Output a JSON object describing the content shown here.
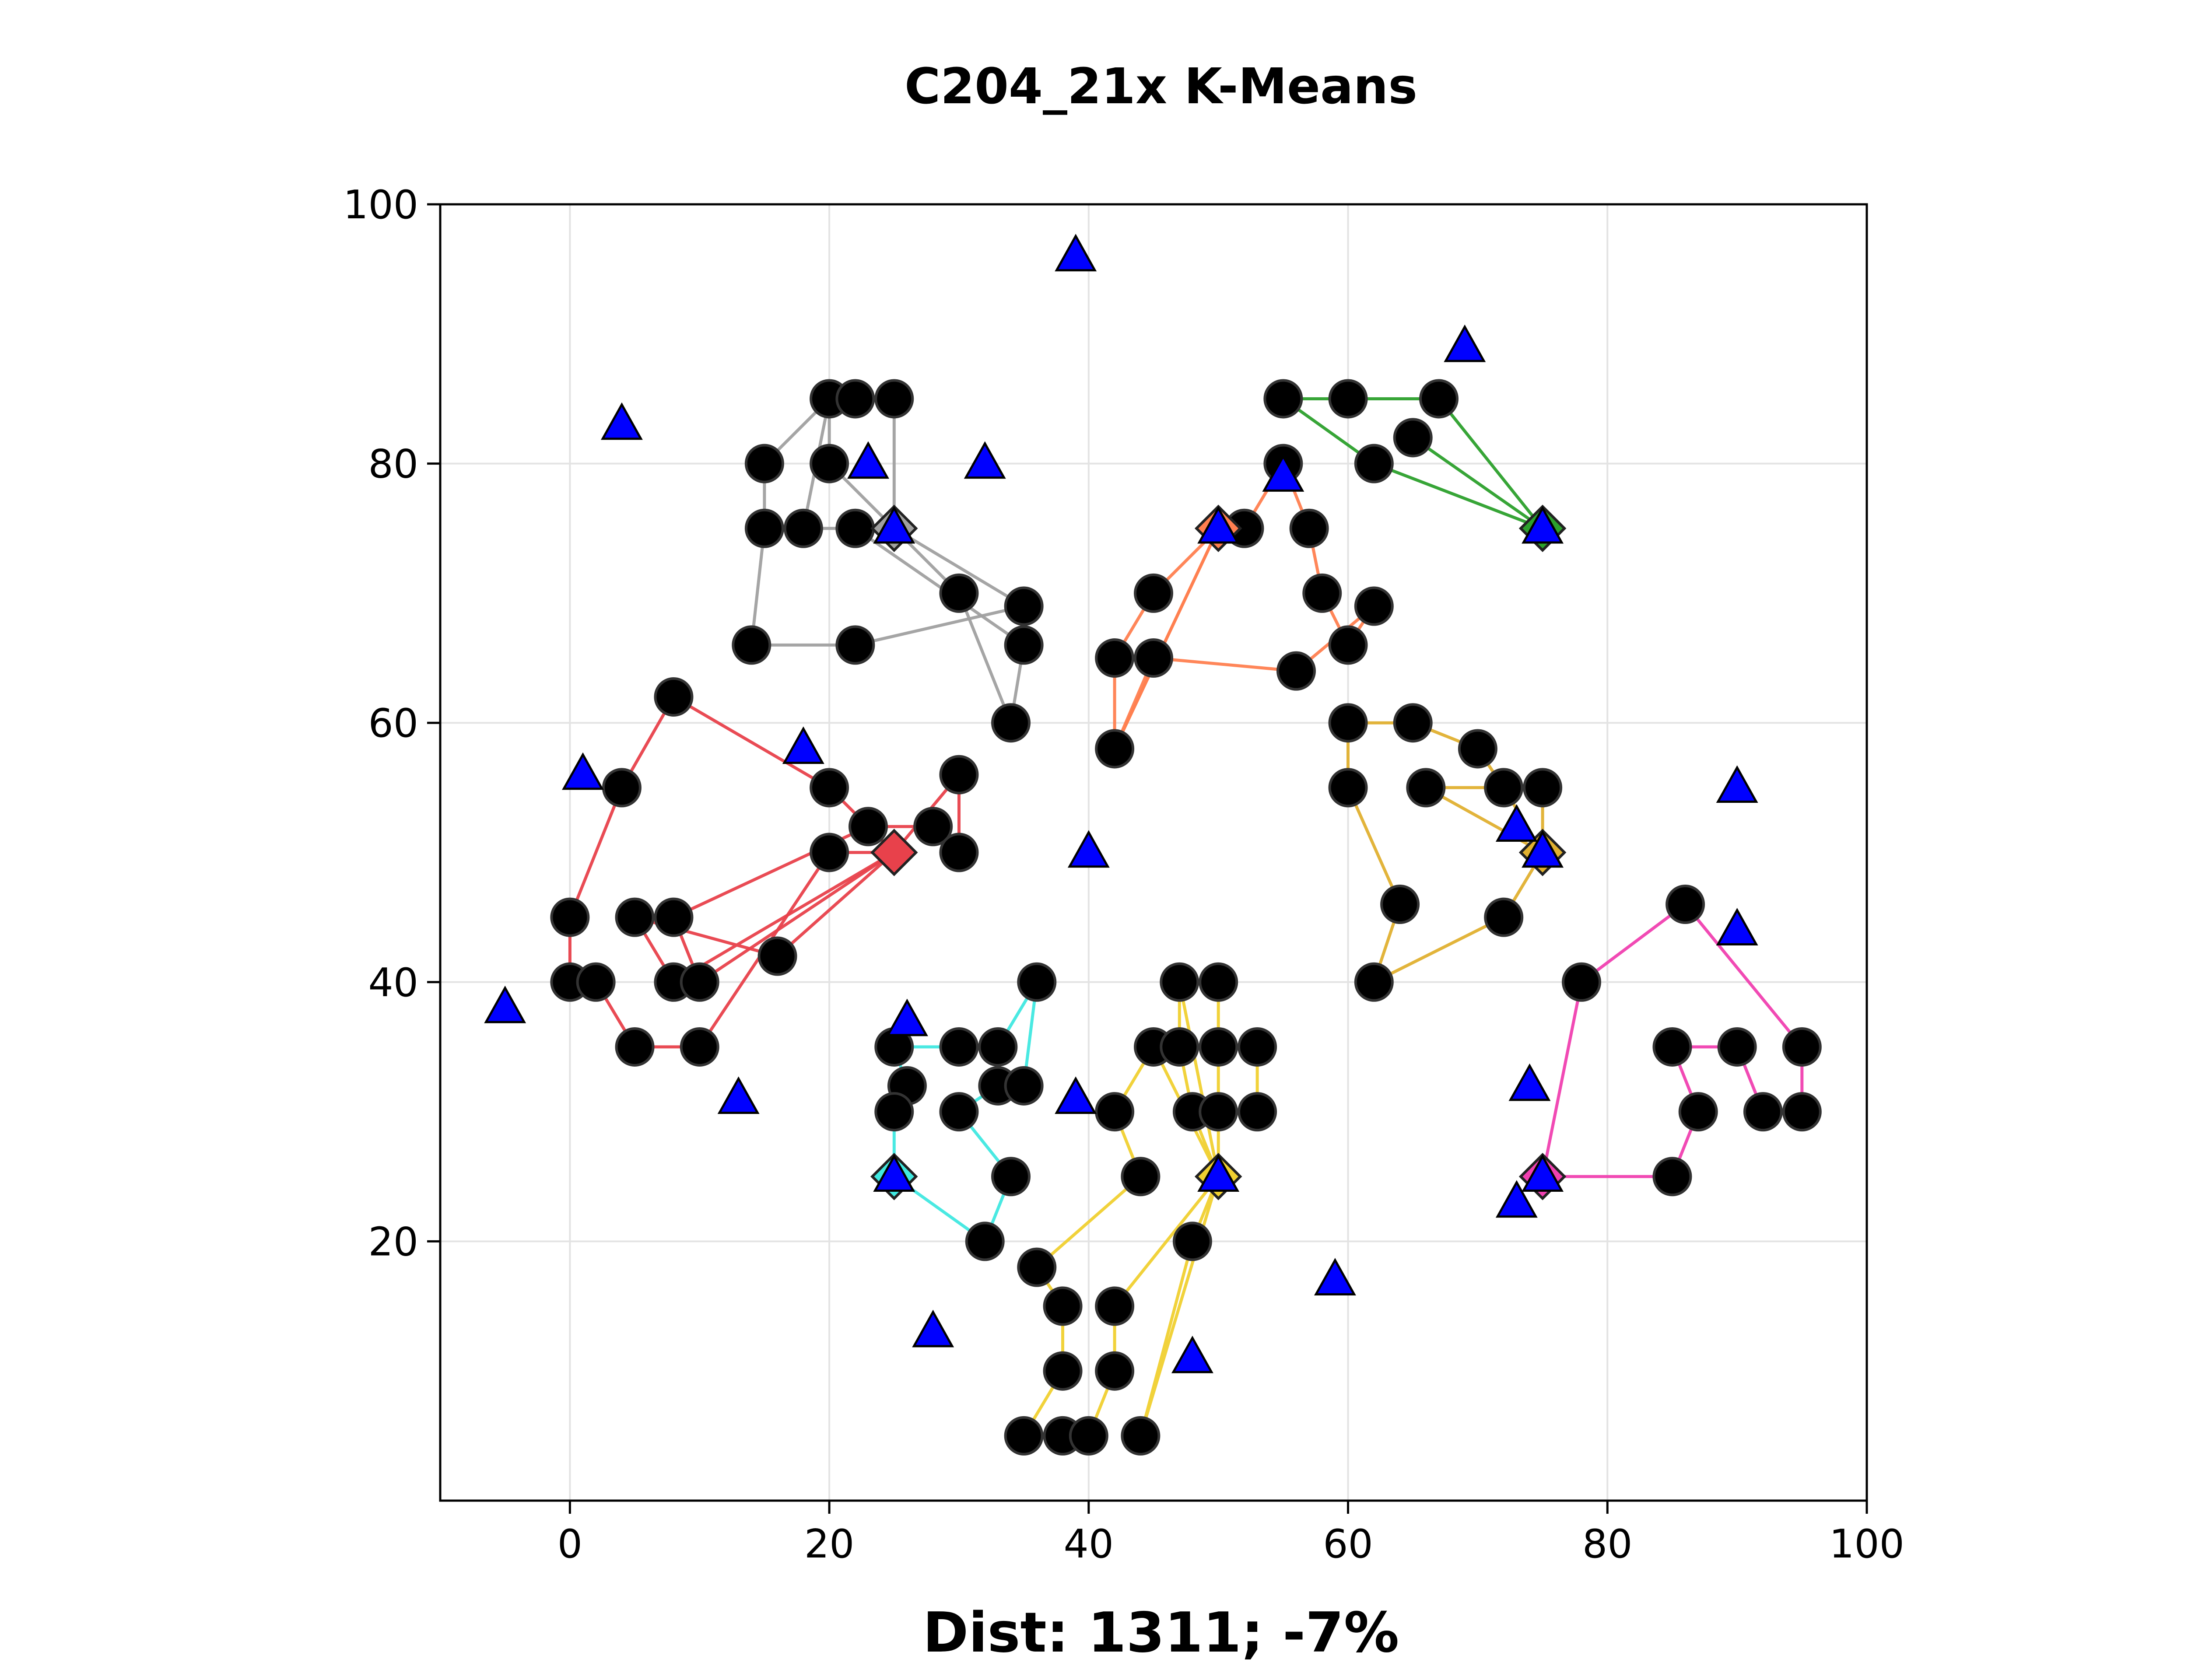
{
  "chart_data": {
    "type": "scatter",
    "title": "C204_21x  K-Means",
    "xlabel": "Dist: 1311; -7%",
    "ylabel": "",
    "xlim": [
      -10,
      100
    ],
    "ylim": [
      0,
      100
    ],
    "xticks": [
      "0",
      "20",
      "40",
      "60",
      "80",
      "100"
    ],
    "yticks": [
      "20",
      "40",
      "60",
      "80",
      "100"
    ],
    "xtick_values": [
      0,
      20,
      40,
      60,
      80,
      100
    ],
    "ytick_values": [
      20,
      40,
      60,
      80,
      100
    ],
    "grid": true,
    "customers": [
      [
        55,
        85
      ],
      [
        60,
        85
      ],
      [
        67,
        85
      ],
      [
        65,
        82
      ],
      [
        62,
        80
      ],
      [
        55,
        80
      ],
      [
        20,
        85
      ],
      [
        22,
        85
      ],
      [
        25,
        85
      ],
      [
        15,
        80
      ],
      [
        20,
        80
      ],
      [
        15,
        75
      ],
      [
        18,
        75
      ],
      [
        22,
        75
      ],
      [
        30,
        70
      ],
      [
        35,
        69
      ],
      [
        35,
        66
      ],
      [
        14,
        66
      ],
      [
        22,
        66
      ],
      [
        34,
        60
      ],
      [
        52,
        75
      ],
      [
        57,
        75
      ],
      [
        45,
        70
      ],
      [
        58,
        70
      ],
      [
        62,
        69
      ],
      [
        60,
        66
      ],
      [
        42,
        65
      ],
      [
        45,
        65
      ],
      [
        56,
        64
      ],
      [
        42,
        58
      ],
      [
        8,
        62
      ],
      [
        4,
        55
      ],
      [
        20,
        55
      ],
      [
        30,
        56
      ],
      [
        23,
        52
      ],
      [
        28,
        52
      ],
      [
        20,
        50
      ],
      [
        30,
        50
      ],
      [
        0,
        45
      ],
      [
        5,
        45
      ],
      [
        8,
        45
      ],
      [
        0,
        40
      ],
      [
        2,
        40
      ],
      [
        8,
        40
      ],
      [
        10,
        40
      ],
      [
        16,
        42
      ],
      [
        5,
        35
      ],
      [
        10,
        35
      ],
      [
        60,
        60
      ],
      [
        65,
        60
      ],
      [
        70,
        58
      ],
      [
        60,
        55
      ],
      [
        66,
        55
      ],
      [
        72,
        55
      ],
      [
        75,
        55
      ],
      [
        64,
        46
      ],
      [
        72,
        45
      ],
      [
        62,
        40
      ],
      [
        86,
        46
      ],
      [
        78,
        40
      ],
      [
        85,
        35
      ],
      [
        90,
        35
      ],
      [
        95,
        35
      ],
      [
        87,
        30
      ],
      [
        92,
        30
      ],
      [
        95,
        30
      ],
      [
        85,
        25
      ],
      [
        36,
        40
      ],
      [
        25,
        35
      ],
      [
        30,
        35
      ],
      [
        33,
        35
      ],
      [
        26,
        32
      ],
      [
        33,
        32
      ],
      [
        35,
        32
      ],
      [
        25,
        30
      ],
      [
        30,
        30
      ],
      [
        34,
        25
      ],
      [
        32,
        20
      ],
      [
        47,
        40
      ],
      [
        50,
        40
      ],
      [
        45,
        35
      ],
      [
        47,
        35
      ],
      [
        50,
        35
      ],
      [
        53,
        35
      ],
      [
        42,
        30
      ],
      [
        48,
        30
      ],
      [
        50,
        30
      ],
      [
        53,
        30
      ],
      [
        44,
        25
      ],
      [
        48,
        20
      ],
      [
        36,
        18
      ],
      [
        38,
        15
      ],
      [
        42,
        15
      ],
      [
        38,
        10
      ],
      [
        42,
        10
      ],
      [
        35,
        5
      ],
      [
        38,
        5
      ],
      [
        40,
        5
      ],
      [
        44,
        5
      ]
    ],
    "depots": [
      [
        39,
        96
      ],
      [
        69,
        89
      ],
      [
        4,
        83
      ],
      [
        23,
        80
      ],
      [
        32,
        80
      ],
      [
        55,
        79
      ],
      [
        25,
        75
      ],
      [
        50,
        75
      ],
      [
        75,
        75
      ],
      [
        1,
        56
      ],
      [
        18,
        58
      ],
      [
        90,
        55
      ],
      [
        73,
        52
      ],
      [
        75,
        50
      ],
      [
        40,
        50
      ],
      [
        90,
        44
      ],
      [
        -5,
        38
      ],
      [
        26,
        37
      ],
      [
        74,
        32
      ],
      [
        13,
        31
      ],
      [
        39,
        31
      ],
      [
        25,
        25
      ],
      [
        50,
        25
      ],
      [
        75,
        25
      ],
      [
        73,
        23
      ],
      [
        59,
        17
      ],
      [
        28,
        13
      ],
      [
        48,
        11
      ]
    ],
    "series": [
      {
        "color": "#2ca02c",
        "centroid": [
          75,
          75
        ],
        "routes": [
          [
            [
              75,
              75
            ],
            [
              67,
              85
            ],
            [
              60,
              85
            ],
            [
              55,
              85
            ],
            [
              62,
              80
            ],
            [
              75,
              75
            ]
          ],
          [
            [
              75,
              75
            ],
            [
              65,
              82
            ],
            [
              75,
              75
            ]
          ]
        ]
      },
      {
        "color": "#a0a0a0",
        "centroid": [
          25,
          75
        ],
        "routes": [
          [
            [
              25,
              75
            ],
            [
              25,
              85
            ],
            [
              22,
              85
            ],
            [
              20,
              85
            ],
            [
              15,
              80
            ],
            [
              15,
              75
            ],
            [
              14,
              66
            ],
            [
              22,
              66
            ],
            [
              35,
              69
            ],
            [
              25,
              75
            ]
          ],
          [
            [
              25,
              75
            ],
            [
              20,
              80
            ],
            [
              20,
              85
            ],
            [
              18,
              75
            ],
            [
              22,
              75
            ],
            [
              35,
              66
            ],
            [
              34,
              60
            ],
            [
              30,
              70
            ],
            [
              25,
              75
            ]
          ]
        ]
      },
      {
        "color": "#ff7f50",
        "centroid": [
          50,
          75
        ],
        "routes": [
          [
            [
              50,
              75
            ],
            [
              45,
              70
            ],
            [
              42,
              65
            ],
            [
              42,
              58
            ],
            [
              50,
              75
            ]
          ],
          [
            [
              50,
              75
            ],
            [
              52,
              75
            ],
            [
              55,
              80
            ],
            [
              57,
              75
            ],
            [
              58,
              70
            ],
            [
              60,
              66
            ],
            [
              62,
              69
            ],
            [
              56,
              64
            ],
            [
              45,
              65
            ],
            [
              42,
              58
            ],
            [
              50,
              75
            ]
          ]
        ]
      },
      {
        "color": "#e8414b",
        "centroid": [
          25,
          50
        ],
        "routes": [
          [
            [
              25,
              50
            ],
            [
              20,
              55
            ],
            [
              8,
              62
            ],
            [
              4,
              55
            ],
            [
              0,
              45
            ],
            [
              0,
              40
            ],
            [
              2,
              40
            ],
            [
              5,
              35
            ],
            [
              10,
              35
            ],
            [
              20,
              50
            ],
            [
              25,
              50
            ]
          ],
          [
            [
              25,
              50
            ],
            [
              30,
              56
            ],
            [
              30,
              50
            ],
            [
              28,
              52
            ],
            [
              23,
              52
            ],
            [
              8,
              45
            ],
            [
              10,
              40
            ],
            [
              25,
              50
            ]
          ],
          [
            [
              25,
              50
            ],
            [
              8,
              40
            ],
            [
              5,
              45
            ],
            [
              16,
              42
            ],
            [
              25,
              50
            ]
          ]
        ]
      },
      {
        "color": "#e0b030",
        "centroid": [
          75,
          50
        ],
        "routes": [
          [
            [
              75,
              50
            ],
            [
              75,
              55
            ],
            [
              72,
              55
            ],
            [
              70,
              58
            ],
            [
              65,
              60
            ],
            [
              60,
              60
            ],
            [
              60,
              55
            ],
            [
              64,
              46
            ],
            [
              62,
              40
            ],
            [
              72,
              45
            ],
            [
              75,
              50
            ]
          ],
          [
            [
              75,
              50
            ],
            [
              66,
              55
            ],
            [
              72,
              55
            ],
            [
              75,
              50
            ]
          ]
        ]
      },
      {
        "color": "#f040b0",
        "centroid": [
          75,
          25
        ],
        "routes": [
          [
            [
              75,
              25
            ],
            [
              78,
              40
            ],
            [
              86,
              46
            ],
            [
              95,
              35
            ],
            [
              95,
              30
            ],
            [
              92,
              30
            ],
            [
              90,
              35
            ],
            [
              85,
              35
            ],
            [
              87,
              30
            ],
            [
              85,
              25
            ],
            [
              75,
              25
            ]
          ]
        ]
      },
      {
        "color": "#40e8e0",
        "centroid": [
          25,
          25
        ],
        "routes": [
          [
            [
              25,
              25
            ],
            [
              25,
              30
            ],
            [
              26,
              32
            ],
            [
              25,
              35
            ],
            [
              30,
              35
            ],
            [
              33,
              35
            ],
            [
              36,
              40
            ],
            [
              35,
              32
            ],
            [
              33,
              32
            ],
            [
              30,
              30
            ],
            [
              34,
              25
            ],
            [
              32,
              20
            ],
            [
              25,
              25
            ]
          ]
        ]
      },
      {
        "color": "#f0d030",
        "centroid": [
          50,
          25
        ],
        "routes": [
          [
            [
              50,
              25
            ],
            [
              47,
              40
            ],
            [
              47,
              35
            ],
            [
              48,
              30
            ],
            [
              50,
              25
            ]
          ],
          [
            [
              50,
              25
            ],
            [
              50,
              40
            ],
            [
              50,
              35
            ],
            [
              53,
              35
            ],
            [
              53,
              30
            ],
            [
              50,
              30
            ],
            [
              50,
              25
            ]
          ],
          [
            [
              50,
              25
            ],
            [
              45,
              35
            ],
            [
              42,
              30
            ],
            [
              44,
              25
            ],
            [
              36,
              18
            ],
            [
              38,
              15
            ],
            [
              38,
              10
            ],
            [
              35,
              5
            ],
            [
              38,
              5
            ],
            [
              40,
              5
            ],
            [
              42,
              10
            ],
            [
              42,
              15
            ],
            [
              50,
              25
            ]
          ],
          [
            [
              50,
              25
            ],
            [
              48,
              20
            ],
            [
              44,
              5
            ],
            [
              50,
              25
            ]
          ]
        ]
      }
    ]
  }
}
